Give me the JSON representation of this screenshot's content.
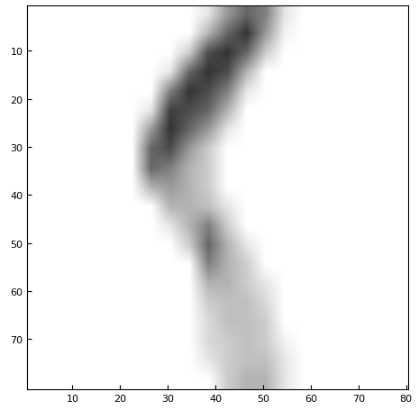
{
  "chart_data": {
    "type": "heatmap",
    "xlim": [
      0.5,
      80.5
    ],
    "ylim": [
      80.5,
      0.5
    ],
    "xticks": [
      10,
      20,
      30,
      40,
      50,
      60,
      70,
      80
    ],
    "yticks": [
      10,
      20,
      30,
      40,
      50,
      60,
      70
    ],
    "color_range": [
      0,
      1
    ],
    "cells": [
      [
        0,
        0,
        0,
        0,
        0,
        0,
        0,
        0,
        0,
        0.1,
        0.4,
        0.6,
        0.5,
        0.1,
        0,
        0,
        0,
        0,
        0,
        0
      ],
      [
        0,
        0,
        0,
        0,
        0,
        0,
        0,
        0,
        0,
        0.3,
        0.6,
        0.8,
        0.4,
        0.05,
        0,
        0,
        0,
        0,
        0,
        0
      ],
      [
        0,
        0,
        0,
        0,
        0,
        0,
        0,
        0,
        0.2,
        0.7,
        0.8,
        0.6,
        0.2,
        0,
        0,
        0,
        0,
        0,
        0,
        0
      ],
      [
        0,
        0,
        0,
        0,
        0,
        0,
        0,
        0.1,
        0.6,
        0.8,
        0.7,
        0.3,
        0,
        0,
        0,
        0,
        0,
        0,
        0,
        0
      ],
      [
        0,
        0,
        0,
        0,
        0,
        0,
        0,
        0.5,
        0.8,
        0.7,
        0.5,
        0.1,
        0,
        0,
        0,
        0,
        0,
        0,
        0,
        0
      ],
      [
        0,
        0,
        0,
        0,
        0,
        0,
        0.1,
        0.75,
        0.7,
        0.6,
        0.3,
        0,
        0,
        0,
        0,
        0,
        0,
        0,
        0,
        0
      ],
      [
        0,
        0,
        0,
        0,
        0,
        0,
        0.4,
        0.8,
        0.6,
        0.4,
        0.1,
        0,
        0,
        0,
        0,
        0,
        0,
        0,
        0,
        0
      ],
      [
        0,
        0,
        0,
        0,
        0,
        0,
        0.6,
        0.7,
        0.4,
        0.2,
        0,
        0,
        0,
        0,
        0,
        0,
        0,
        0,
        0,
        0
      ],
      [
        0,
        0,
        0,
        0,
        0,
        0,
        0.6,
        0.5,
        0.3,
        0.2,
        0,
        0,
        0,
        0,
        0,
        0,
        0,
        0,
        0,
        0
      ],
      [
        0,
        0,
        0,
        0,
        0,
        0,
        0.3,
        0.4,
        0.3,
        0.2,
        0,
        0,
        0,
        0,
        0,
        0,
        0,
        0,
        0,
        0
      ],
      [
        0,
        0,
        0,
        0,
        0,
        0,
        0,
        0.3,
        0.3,
        0.25,
        0.1,
        0,
        0,
        0,
        0,
        0,
        0,
        0,
        0,
        0
      ],
      [
        0,
        0,
        0,
        0,
        0,
        0,
        0,
        0.1,
        0.3,
        0.5,
        0.2,
        0,
        0,
        0,
        0,
        0,
        0,
        0,
        0,
        0
      ],
      [
        0,
        0,
        0,
        0,
        0,
        0,
        0,
        0,
        0.2,
        0.6,
        0.3,
        0.1,
        0,
        0,
        0,
        0,
        0,
        0,
        0,
        0
      ],
      [
        0,
        0,
        0,
        0,
        0,
        0,
        0,
        0,
        0,
        0.5,
        0.3,
        0.2,
        0,
        0,
        0,
        0,
        0,
        0,
        0,
        0
      ],
      [
        0,
        0,
        0,
        0,
        0,
        0,
        0,
        0,
        0,
        0.3,
        0.3,
        0.2,
        0.1,
        0,
        0,
        0,
        0,
        0,
        0,
        0
      ],
      [
        0,
        0,
        0,
        0,
        0,
        0,
        0,
        0,
        0,
        0.2,
        0.25,
        0.25,
        0.15,
        0,
        0,
        0,
        0,
        0,
        0,
        0
      ],
      [
        0,
        0,
        0,
        0,
        0,
        0,
        0,
        0,
        0,
        0.15,
        0.25,
        0.25,
        0.2,
        0,
        0,
        0,
        0,
        0,
        0,
        0
      ],
      [
        0,
        0,
        0,
        0,
        0,
        0,
        0,
        0,
        0,
        0.15,
        0.2,
        0.25,
        0.2,
        0.05,
        0,
        0,
        0,
        0,
        0,
        0
      ],
      [
        0,
        0,
        0,
        0,
        0,
        0,
        0,
        0,
        0,
        0.1,
        0.2,
        0.25,
        0.25,
        0.1,
        0,
        0,
        0,
        0,
        0,
        0
      ],
      [
        0,
        0,
        0,
        0,
        0,
        0,
        0,
        0,
        0,
        0,
        0.2,
        0.3,
        0.3,
        0.1,
        0,
        0,
        0,
        0,
        0,
        0
      ]
    ]
  }
}
